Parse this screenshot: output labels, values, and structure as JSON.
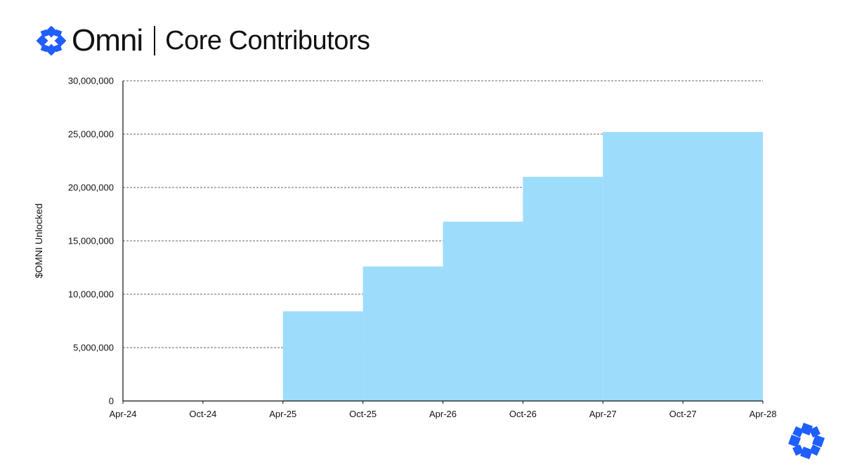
{
  "header": {
    "brand": "Omni",
    "title": "Core Contributors"
  },
  "colors": {
    "accent": "#1f5eff",
    "fill": "#9ddcfb",
    "grid": "#333333"
  },
  "icons": {
    "header_logo": "omni-logo-icon",
    "corner_logo": "omni-logo-icon"
  },
  "chart_data": {
    "type": "area",
    "step": true,
    "title": "",
    "xlabel": "",
    "ylabel": "$OMNI Unlocked",
    "x_ticks": [
      "Apr-24",
      "Oct-24",
      "Apr-25",
      "Oct-25",
      "Apr-26",
      "Oct-26",
      "Apr-27",
      "Oct-27",
      "Apr-28"
    ],
    "y_ticks": [
      "0",
      "5,000,000",
      "10,000,000",
      "15,000,000",
      "20,000,000",
      "25,000,000",
      "30,000,000"
    ],
    "ylim": [
      0,
      30000000
    ],
    "xlim": [
      "Apr-24",
      "Apr-28"
    ],
    "grid": "horizontal-dashed",
    "series": [
      {
        "steps": [
          {
            "start": "Apr-25",
            "end": "Oct-25",
            "value": 8400000
          },
          {
            "start": "Oct-25",
            "end": "Apr-26",
            "value": 12600000
          },
          {
            "start": "Apr-26",
            "end": "Oct-26",
            "value": 16800000
          },
          {
            "start": "Oct-26",
            "end": "Apr-27",
            "value": 21000000
          },
          {
            "start": "Apr-27",
            "end": "Apr-28",
            "value": 25200000
          }
        ]
      }
    ]
  }
}
